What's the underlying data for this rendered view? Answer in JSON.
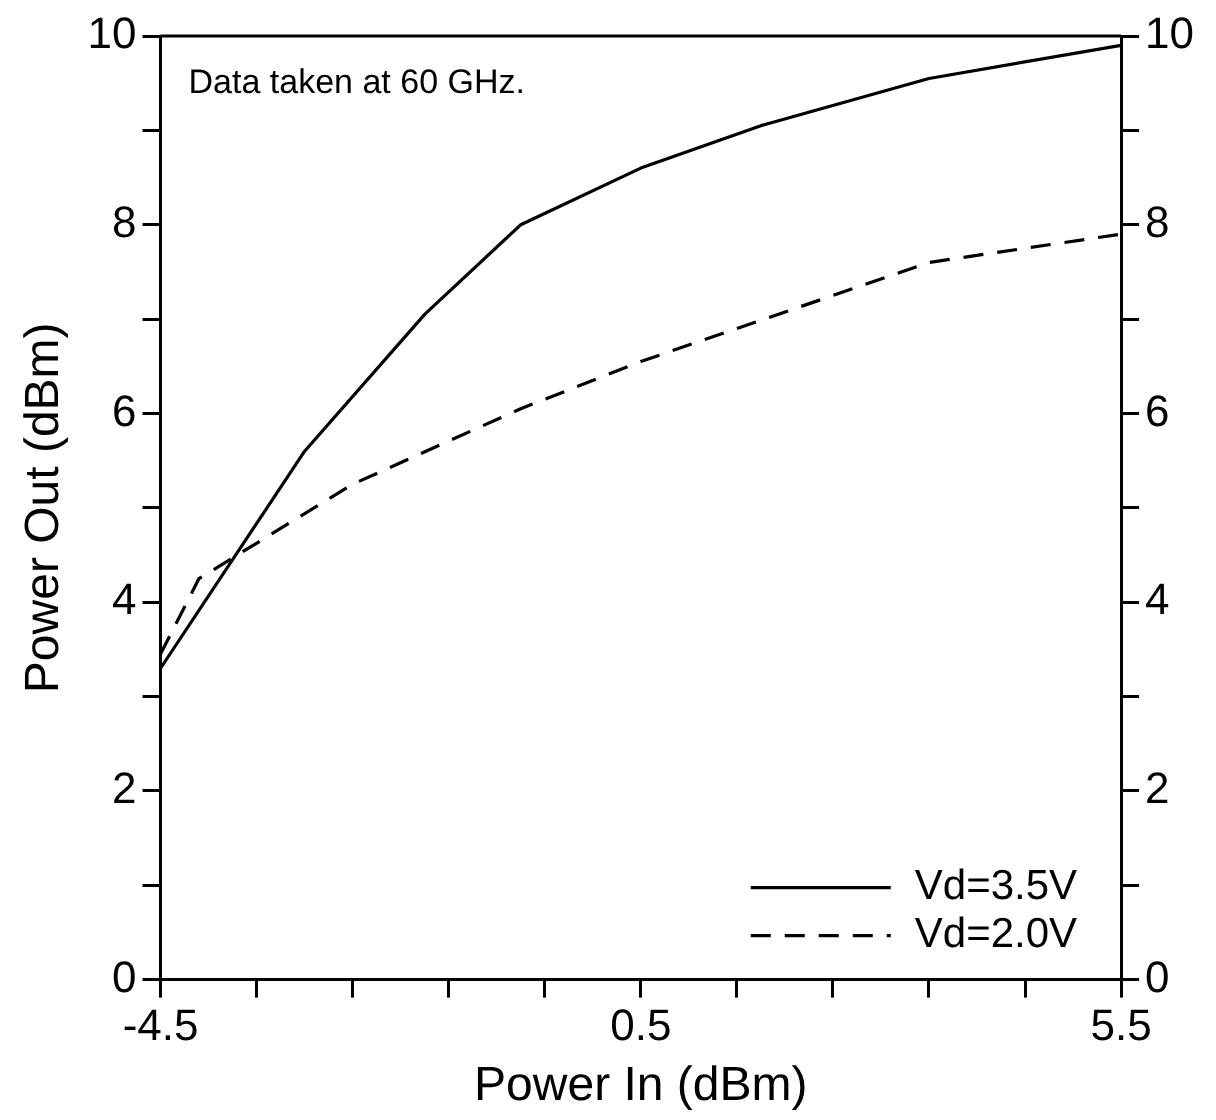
{
  "chart_data": {
    "type": "line",
    "xlabel": "Power In (dBm)",
    "ylabel": "Power Out (dBm)",
    "annotations": [
      "Data taken at 60 GHz."
    ],
    "series": [
      {
        "name": "Vd=3.5V",
        "color": "#000000",
        "line_style": "solid",
        "x": [
          -4.5,
          -3.0,
          -1.75,
          -0.75,
          0.5,
          1.75,
          3.5,
          5.5
        ],
        "values": [
          3.3,
          5.6,
          7.05,
          8.0,
          8.6,
          9.05,
          9.55,
          9.9
        ]
      },
      {
        "name": "Vd=2.0V",
        "color": "#000000",
        "line_style": "dashed",
        "x": [
          -4.5,
          -4.1,
          -2.5,
          -0.75,
          0.5,
          3.5,
          5.5
        ],
        "values": [
          3.45,
          4.25,
          5.25,
          6.05,
          6.55,
          7.6,
          7.9
        ]
      }
    ],
    "xlim": [
      -4.5,
      5.5
    ],
    "xticks": [
      -4.5,
      {
        "value": -3.5,
        "label": null
      },
      {
        "value": -2.5,
        "label": null
      },
      {
        "value": -1.5,
        "label": null
      },
      {
        "value": -0.5,
        "label": null
      },
      0.5,
      {
        "value": 1.5,
        "label": null
      },
      {
        "value": 2.5,
        "label": null
      },
      {
        "value": 3.5,
        "label": null
      },
      {
        "value": 4.5,
        "label": null
      },
      5.5
    ],
    "ylim": [
      0,
      10
    ],
    "yticks": [
      0,
      {
        "value": 1,
        "label": null
      },
      2,
      {
        "value": 3,
        "label": null
      },
      4,
      {
        "value": 5,
        "label": null
      },
      6,
      {
        "value": 7,
        "label": null
      },
      8,
      {
        "value": 9,
        "label": null
      },
      10
    ],
    "y2lim": [
      0,
      10
    ],
    "y2ticks": [
      0,
      {
        "value": 1,
        "label": null
      },
      2,
      {
        "value": 3,
        "label": null
      },
      4,
      {
        "value": 5,
        "label": null
      },
      6,
      {
        "value": 7,
        "label": null
      },
      8,
      {
        "value": 9,
        "label": null
      },
      10
    ],
    "grid": false,
    "legend": "bottom right",
    "marker": "none"
  }
}
